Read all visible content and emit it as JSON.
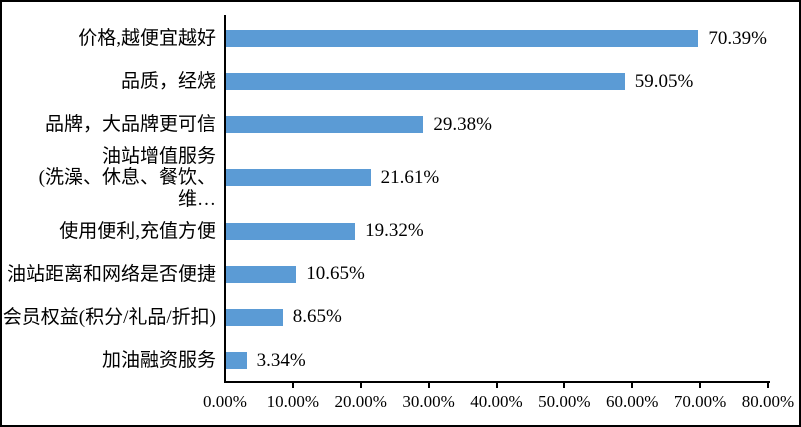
{
  "chart_data": {
    "type": "bar",
    "orientation": "horizontal",
    "title": "",
    "xlabel": "",
    "ylabel": "",
    "grid": false,
    "legend_position": "none",
    "bar_color": "#5B9BD5",
    "axis_color": "#000000",
    "xlim": [
      0,
      80
    ],
    "categories": [
      "价格,越便宜越好",
      "品质，经烧",
      "品牌，大品牌更可信",
      "油站增值服务\n(洗澡、休息、餐饮、维…",
      "使用便利,充值方便",
      "油站距离和网络是否便捷",
      "会员权益(积分/礼品/折扣)",
      "加油融资服务"
    ],
    "values": [
      70.39,
      59.05,
      29.38,
      21.61,
      19.32,
      10.65,
      8.65,
      3.34
    ],
    "data_labels": [
      "70.39%",
      "59.05%",
      "29.38%",
      "21.61%",
      "19.32%",
      "10.65%",
      "8.65%",
      "3.34%"
    ],
    "x_ticks": [
      "0.00%",
      "10.00%",
      "20.00%",
      "30.00%",
      "40.00%",
      "50.00%",
      "60.00%",
      "70.00%",
      "80.00%"
    ]
  }
}
